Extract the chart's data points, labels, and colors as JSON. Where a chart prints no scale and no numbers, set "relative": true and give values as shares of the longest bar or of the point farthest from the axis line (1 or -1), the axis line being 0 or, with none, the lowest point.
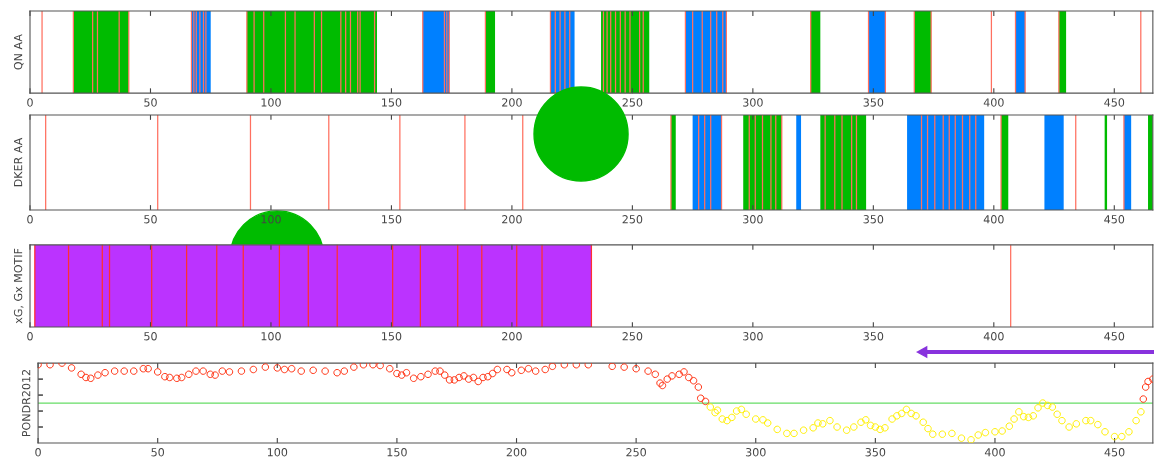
{
  "chart_data": [
    {
      "type": "bar",
      "orientation": "horizontal",
      "categories": [
        null
      ],
      "ylabel": "QN AA",
      "xlim": [
        0,
        466
      ],
      "xticks": [
        0,
        50,
        100,
        150,
        200,
        250,
        300,
        350,
        400,
        450
      ],
      "tick_labels": "x",
      "series": [
        {
          "color": "#00bb00",
          "base": [
            18
          ],
          "values": [
            23
          ]
        },
        {
          "color": "#0080ff",
          "base": [
            67
          ],
          "values": [
            8
          ]
        },
        {
          "color": "#00bb00",
          "base": [
            90
          ],
          "values": [
            54
          ]
        },
        {
          "color": "#0080ff",
          "base": [
            163
          ],
          "values": [
            11
          ]
        },
        {
          "color": "#00bb00",
          "base": [
            189
          ],
          "values": [
            4
          ]
        },
        {
          "color": "#0080ff",
          "base": [
            216
          ],
          "values": [
            10
          ]
        },
        {
          "color": "#00bb00",
          "base": [
            237
          ],
          "values": [
            20
          ]
        },
        {
          "color": "#0080ff",
          "base": [
            272
          ],
          "values": [
            17
          ]
        },
        {
          "color": "#00bb00",
          "base": [
            324
          ],
          "values": [
            4
          ]
        },
        {
          "color": "#0080ff",
          "base": [
            348
          ],
          "values": [
            7
          ]
        },
        {
          "color": "#00bb00",
          "base": [
            367
          ],
          "values": [
            7
          ]
        },
        {
          "color": "#0080ff",
          "base": [
            409
          ],
          "values": [
            4
          ]
        },
        {
          "color": "#00bb00",
          "base": [
            427
          ],
          "values": [
            3
          ]
        }
      ],
      "ref_lines": [
        {
          "axis": "x",
          "value": 5,
          "color": "#ff7060"
        },
        {
          "axis": "x",
          "value": 18,
          "color": "#ff7060"
        },
        {
          "axis": "x",
          "value": 26,
          "color": "#ff7060"
        },
        {
          "axis": "x",
          "value": 28,
          "color": "#ff7060"
        },
        {
          "axis": "x",
          "value": 37,
          "color": "#ff7060"
        },
        {
          "axis": "x",
          "value": 41,
          "color": "#ff7060"
        },
        {
          "axis": "x",
          "value": 67,
          "color": "#ff7060"
        },
        {
          "axis": "x",
          "value": 68,
          "color": "#ff7060"
        },
        {
          "axis": "x",
          "value": 69,
          "color": "#ff7060"
        },
        {
          "axis": "x",
          "value": 70.5,
          "color": "#ff7060"
        },
        {
          "axis": "x",
          "value": 72,
          "color": "#ff7060"
        },
        {
          "axis": "x",
          "value": 73,
          "color": "#ff7060"
        },
        {
          "axis": "x",
          "value": 90,
          "color": "#ff7060"
        },
        {
          "axis": "x",
          "value": 93,
          "color": "#ff7060"
        },
        {
          "axis": "x",
          "value": 97,
          "color": "#ff7060"
        },
        {
          "axis": "x",
          "value": 106,
          "color": "#ff7060"
        },
        {
          "axis": "x",
          "value": 110,
          "color": "#ff7060"
        },
        {
          "axis": "x",
          "value": 118,
          "color": "#ff7060"
        },
        {
          "axis": "x",
          "value": 121,
          "color": "#ff7060"
        },
        {
          "axis": "x",
          "value": 129,
          "color": "#ff7060"
        },
        {
          "axis": "x",
          "value": 131,
          "color": "#ff7060"
        },
        {
          "axis": "x",
          "value": 133,
          "color": "#ff7060"
        },
        {
          "axis": "x",
          "value": 136,
          "color": "#ff7060"
        },
        {
          "axis": "x",
          "value": 137,
          "color": "#ff7060"
        },
        {
          "axis": "x",
          "value": 143,
          "color": "#ff7060"
        },
        {
          "axis": "x",
          "value": 163,
          "color": "#ff7060"
        },
        {
          "axis": "x",
          "value": 172,
          "color": "#ff7060"
        },
        {
          "axis": "x",
          "value": 173,
          "color": "#ff7060"
        },
        {
          "axis": "x",
          "value": 174,
          "color": "#ff7060"
        },
        {
          "axis": "x",
          "value": 189,
          "color": "#ff7060"
        },
        {
          "axis": "x",
          "value": 216,
          "color": "#ff7060"
        },
        {
          "axis": "x",
          "value": 218,
          "color": "#ff7060"
        },
        {
          "axis": "x",
          "value": 220,
          "color": "#ff7060"
        },
        {
          "axis": "x",
          "value": 222,
          "color": "#ff7060"
        },
        {
          "axis": "x",
          "value": 224,
          "color": "#ff7060"
        },
        {
          "axis": "x",
          "value": 238,
          "color": "#ff7060"
        },
        {
          "axis": "x",
          "value": 239.5,
          "color": "#ff7060"
        },
        {
          "axis": "x",
          "value": 241,
          "color": "#ff7060"
        },
        {
          "axis": "x",
          "value": 243,
          "color": "#ff7060"
        },
        {
          "axis": "x",
          "value": 245,
          "color": "#ff7060"
        },
        {
          "axis": "x",
          "value": 247,
          "color": "#ff7060"
        },
        {
          "axis": "x",
          "value": 249,
          "color": "#ff7060"
        },
        {
          "axis": "x",
          "value": 253,
          "color": "#ff7060"
        },
        {
          "axis": "x",
          "value": 254.5,
          "color": "#ff7060"
        },
        {
          "axis": "x",
          "value": 272,
          "color": "#ff7060"
        },
        {
          "axis": "x",
          "value": 275,
          "color": "#ff7060"
        },
        {
          "axis": "x",
          "value": 279,
          "color": "#ff7060"
        },
        {
          "axis": "x",
          "value": 282.5,
          "color": "#ff7060"
        },
        {
          "axis": "x",
          "value": 285,
          "color": "#ff7060"
        },
        {
          "axis": "x",
          "value": 287.5,
          "color": "#ff7060"
        },
        {
          "axis": "x",
          "value": 289,
          "color": "#ff7060"
        },
        {
          "axis": "x",
          "value": 324,
          "color": "#ff7060"
        },
        {
          "axis": "x",
          "value": 348,
          "color": "#ff7060"
        },
        {
          "axis": "x",
          "value": 355,
          "color": "#ff7060"
        },
        {
          "axis": "x",
          "value": 367,
          "color": "#ff7060"
        },
        {
          "axis": "x",
          "value": 374,
          "color": "#ff7060"
        },
        {
          "axis": "x",
          "value": 399,
          "color": "#ff7060"
        },
        {
          "axis": "x",
          "value": 409,
          "color": "#ff7060"
        },
        {
          "axis": "x",
          "value": 413,
          "color": "#ff7060"
        },
        {
          "axis": "x",
          "value": 427,
          "color": "#ff7060"
        },
        {
          "axis": "x",
          "value": 461,
          "color": "#ff7060"
        }
      ]
    },
    {
      "type": "bar",
      "orientation": "horizontal",
      "categories": [
        null
      ],
      "ylabel": "DKER AA",
      "xlim": [
        0,
        466
      ],
      "xticks": [
        0,
        50,
        100,
        150,
        200,
        250,
        300,
        350,
        400,
        450
      ],
      "tick_labels": "x",
      "series": [
        {
          "color": "#00bb00",
          "base": [
            266
          ],
          "values": [
            2
          ]
        },
        {
          "color": "#0080ff",
          "base": [
            275
          ],
          "values": [
            12
          ]
        },
        {
          "color": "#00bb00",
          "base": [
            296
          ],
          "values": [
            16
          ]
        },
        {
          "color": "#0080ff",
          "base": [
            318
          ],
          "values": [
            2
          ]
        },
        {
          "color": "#00bb00",
          "base": [
            328
          ],
          "values": [
            19
          ]
        },
        {
          "color": "#0080ff",
          "base": [
            364
          ],
          "values": [
            32
          ]
        },
        {
          "color": "#00bb00",
          "base": [
            403
          ],
          "values": [
            3
          ]
        },
        {
          "color": "#0080ff",
          "base": [
            421
          ],
          "values": [
            8
          ]
        },
        {
          "color": "#00bb00",
          "base": [
            446
          ],
          "values": [
            1
          ]
        },
        {
          "color": "#0080ff",
          "base": [
            454
          ],
          "values": [
            3
          ]
        },
        {
          "color": "#00bb00",
          "base": [
            464
          ],
          "values": [
            2
          ]
        }
      ],
      "ref_lines": [
        {
          "axis": "x",
          "value": 6.5,
          "color": "#ff7060"
        },
        {
          "axis": "x",
          "value": 53,
          "color": "#ff7060"
        },
        {
          "axis": "x",
          "value": 91.5,
          "color": "#ff7060"
        },
        {
          "axis": "x",
          "value": 124,
          "color": "#ff7060"
        },
        {
          "axis": "x",
          "value": 153.5,
          "color": "#ff7060"
        },
        {
          "axis": "x",
          "value": 180.5,
          "color": "#ff7060"
        },
        {
          "axis": "x",
          "value": 204.5,
          "color": "#ff7060"
        },
        {
          "axis": "x",
          "value": 266,
          "color": "#ff7060"
        },
        {
          "axis": "x",
          "value": 277.5,
          "color": "#ff7060"
        },
        {
          "axis": "x",
          "value": 280,
          "color": "#ff7060"
        },
        {
          "axis": "x",
          "value": 282.5,
          "color": "#ff7060"
        },
        {
          "axis": "x",
          "value": 287,
          "color": "#ff7060"
        },
        {
          "axis": "x",
          "value": 298.5,
          "color": "#ff7060"
        },
        {
          "axis": "x",
          "value": 301,
          "color": "#ff7060"
        },
        {
          "axis": "x",
          "value": 304,
          "color": "#ff7060"
        },
        {
          "axis": "x",
          "value": 307.5,
          "color": "#ff7060"
        },
        {
          "axis": "x",
          "value": 309.5,
          "color": "#ff7060"
        },
        {
          "axis": "x",
          "value": 312,
          "color": "#ff7060"
        },
        {
          "axis": "x",
          "value": 330,
          "color": "#ff7060"
        },
        {
          "axis": "x",
          "value": 334,
          "color": "#ff7060"
        },
        {
          "axis": "x",
          "value": 337,
          "color": "#ff7060"
        },
        {
          "axis": "x",
          "value": 341,
          "color": "#ff7060"
        },
        {
          "axis": "x",
          "value": 343,
          "color": "#ff7060"
        },
        {
          "axis": "x",
          "value": 370,
          "color": "#ff7060"
        },
        {
          "axis": "x",
          "value": 372.5,
          "color": "#ff7060"
        },
        {
          "axis": "x",
          "value": 375.5,
          "color": "#ff7060"
        },
        {
          "axis": "x",
          "value": 379,
          "color": "#ff7060"
        },
        {
          "axis": "x",
          "value": 381.5,
          "color": "#ff7060"
        },
        {
          "axis": "x",
          "value": 384,
          "color": "#ff7060"
        },
        {
          "axis": "x",
          "value": 387,
          "color": "#ff7060"
        },
        {
          "axis": "x",
          "value": 390,
          "color": "#ff7060"
        },
        {
          "axis": "x",
          "value": 392.5,
          "color": "#ff7060"
        },
        {
          "axis": "x",
          "value": 403,
          "color": "#ff7060"
        },
        {
          "axis": "x",
          "value": 434,
          "color": "#ff7060"
        },
        {
          "axis": "x",
          "value": 454,
          "color": "#ff7060"
        }
      ]
    },
    {
      "type": "bar",
      "orientation": "horizontal",
      "categories": [
        null
      ],
      "ylabel": "xG, Gx MOTIF",
      "xlim": [
        0,
        466
      ],
      "xticks": [
        0,
        50,
        100,
        150,
        200,
        250,
        300,
        350,
        400,
        450
      ],
      "tick_labels": "x",
      "series": [
        {
          "color": "#bb33ff",
          "base": [
            2
          ],
          "values": [
            231
          ]
        }
      ],
      "ref_lines": [
        {
          "axis": "x",
          "value": 2,
          "color": "#ff3030"
        },
        {
          "axis": "x",
          "value": 16,
          "color": "#ff3030"
        },
        {
          "axis": "x",
          "value": 30,
          "color": "#ff3030"
        },
        {
          "axis": "x",
          "value": 33,
          "color": "#ff3030"
        },
        {
          "axis": "x",
          "value": 50.5,
          "color": "#ff3030"
        },
        {
          "axis": "x",
          "value": 65,
          "color": "#ff3030"
        },
        {
          "axis": "x",
          "value": 77.5,
          "color": "#ff3030"
        },
        {
          "axis": "x",
          "value": 88.5,
          "color": "#ff3030"
        },
        {
          "axis": "x",
          "value": 103.5,
          "color": "#ff3030"
        },
        {
          "axis": "x",
          "value": 115.5,
          "color": "#ff3030"
        },
        {
          "axis": "x",
          "value": 127.5,
          "color": "#ff3030"
        },
        {
          "axis": "x",
          "value": 150.5,
          "color": "#ff3030"
        },
        {
          "axis": "x",
          "value": 162,
          "color": "#ff3030"
        },
        {
          "axis": "x",
          "value": 177.5,
          "color": "#ff3030"
        },
        {
          "axis": "x",
          "value": 187.5,
          "color": "#ff3030"
        },
        {
          "axis": "x",
          "value": 202,
          "color": "#ff3030"
        },
        {
          "axis": "x",
          "value": 212.5,
          "color": "#ff3030"
        },
        {
          "axis": "x",
          "value": 233,
          "color": "#ff3030"
        },
        {
          "axis": "x",
          "value": 407,
          "color": "#ff7060"
        }
      ]
    },
    {
      "type": "scatter",
      "ylabel": "PONDR2012",
      "relative": true,
      "marker": "circle",
      "xlim": [
        0,
        466
      ],
      "xticks": [
        0,
        50,
        100,
        150,
        200,
        250,
        300,
        350,
        400,
        450
      ],
      "tick_labels": "x",
      "ref_lines": [
        {
          "axis": "y",
          "value": 0.5,
          "color": "#66dd66"
        }
      ],
      "series": [
        {
          "color": "#ff3010",
          "x": [
            0,
            5,
            10,
            14,
            18,
            20,
            22,
            25,
            28,
            32,
            36,
            40,
            44,
            46,
            50,
            53,
            55,
            58,
            60,
            63,
            66,
            69,
            72,
            74,
            77,
            80,
            85,
            90,
            95,
            100,
            103,
            106,
            110,
            115,
            120,
            125,
            128,
            132,
            136,
            140,
            143,
            147,
            150,
            152,
            154,
            157,
            160,
            163,
            166,
            168,
            170,
            172,
            174,
            176,
            178,
            180,
            182,
            184,
            186,
            188,
            190,
            192,
            196,
            198,
            202,
            205,
            208,
            212,
            215,
            220,
            225,
            230,
            240,
            245,
            250,
            255,
            258,
            260,
            261,
            263,
            265,
            268,
            270,
            272,
            274,
            276,
            277,
            279,
            462,
            463,
            464,
            466
          ],
          "values": [
            0.98,
            0.98,
            1,
            0.94,
            0.86,
            0.82,
            0.81,
            0.85,
            0.88,
            0.9,
            0.9,
            0.9,
            0.93,
            0.93,
            0.89,
            0.83,
            0.82,
            0.81,
            0.82,
            0.86,
            0.9,
            0.9,
            0.86,
            0.85,
            0.9,
            0.89,
            0.9,
            0.92,
            0.95,
            0.94,
            0.92,
            0.93,
            0.9,
            0.91,
            0.9,
            0.88,
            0.9,
            0.95,
            0.98,
            0.98,
            0.97,
            0.93,
            0.87,
            0.85,
            0.88,
            0.81,
            0.83,
            0.86,
            0.9,
            0.9,
            0.85,
            0.79,
            0.79,
            0.82,
            0.84,
            0.8,
            0.82,
            0.77,
            0.82,
            0.83,
            0.87,
            0.92,
            0.92,
            0.88,
            0.91,
            0.93,
            0.9,
            0.92,
            0.96,
            0.98,
            0.98,
            0.98,
            0.96,
            0.95,
            0.93,
            0.9,
            0.86,
            0.75,
            0.72,
            0.8,
            0.84,
            0.86,
            0.89,
            0.82,
            0.78,
            0.7,
            0.56,
            0.52,
            0.55,
            0.7,
            0.77,
            0.8
          ]
        },
        {
          "color": "#ffee00",
          "x": [
            281,
            283,
            284,
            286,
            288,
            290,
            292,
            294,
            296,
            300,
            303,
            305,
            309,
            313,
            316,
            320,
            324,
            326,
            328,
            331,
            334,
            338,
            341,
            344,
            346,
            348,
            350,
            352,
            354,
            357,
            359,
            361,
            363,
            365,
            367,
            370,
            372,
            374,
            378,
            382,
            386,
            390,
            393,
            396,
            400,
            403,
            406,
            408,
            410,
            412,
            414,
            416,
            418,
            420,
            422,
            424,
            426,
            428,
            431,
            434,
            438,
            440,
            443,
            446,
            450,
            453,
            456,
            459,
            461
          ],
          "values": [
            0.45,
            0.38,
            0.41,
            0.3,
            0.28,
            0.32,
            0.4,
            0.42,
            0.36,
            0.3,
            0.29,
            0.25,
            0.17,
            0.12,
            0.12,
            0.16,
            0.19,
            0.25,
            0.24,
            0.28,
            0.2,
            0.16,
            0.2,
            0.26,
            0.29,
            0.22,
            0.2,
            0.17,
            0.19,
            0.3,
            0.34,
            0.37,
            0.42,
            0.37,
            0.34,
            0.26,
            0.18,
            0.11,
            0.11,
            0.12,
            0.06,
            0.04,
            0.1,
            0.13,
            0.14,
            0.15,
            0.21,
            0.3,
            0.39,
            0.33,
            0.32,
            0.34,
            0.44,
            0.5,
            0.47,
            0.45,
            0.36,
            0.28,
            0.2,
            0.24,
            0.28,
            0.28,
            0.23,
            0.14,
            0.08,
            0.08,
            0.14,
            0.28,
            0.39
          ]
        }
      ]
    }
  ]
}
